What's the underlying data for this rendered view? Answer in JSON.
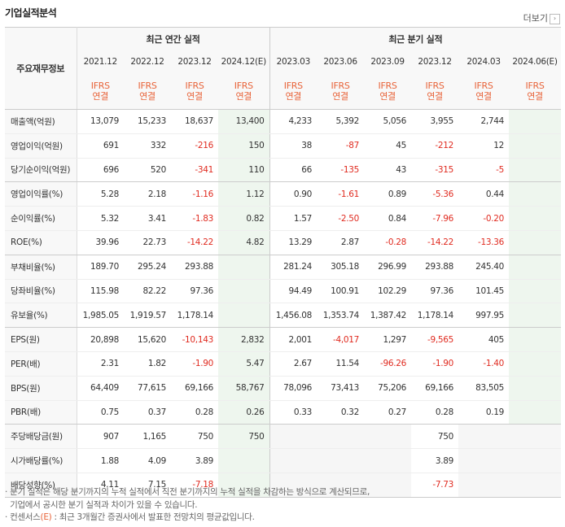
{
  "title": "기업실적분석",
  "more_label": "더보기",
  "header": {
    "row_label": "주요재무정보",
    "annual_group": "최근 연간 실적",
    "quarter_group": "최근 분기 실적",
    "periods": [
      "2021.12",
      "2022.12",
      "2023.12",
      "2024.12(E)",
      "2023.03",
      "2023.06",
      "2023.09",
      "2023.12",
      "2024.03",
      "2024.06(E)"
    ],
    "basis_top": "IFRS",
    "basis_bottom": "연결"
  },
  "rows": [
    {
      "label": "매출액(억원)",
      "values": [
        "13,079",
        "15,233",
        "18,637",
        "13,400",
        "4,233",
        "5,392",
        "5,056",
        "3,955",
        "2,744",
        ""
      ]
    },
    {
      "label": "영업이익(억원)",
      "values": [
        "691",
        "332",
        "-216",
        "150",
        "38",
        "-87",
        "45",
        "-212",
        "12",
        ""
      ]
    },
    {
      "label": "당기순이익(억원)",
      "values": [
        "696",
        "520",
        "-341",
        "110",
        "66",
        "-135",
        "43",
        "-315",
        "-5",
        ""
      ]
    },
    {
      "label": "영업이익률(%)",
      "values": [
        "5.28",
        "2.18",
        "-1.16",
        "1.12",
        "0.90",
        "-1.61",
        "0.89",
        "-5.36",
        "0.44",
        ""
      ]
    },
    {
      "label": "순이익률(%)",
      "values": [
        "5.32",
        "3.41",
        "-1.83",
        "0.82",
        "1.57",
        "-2.50",
        "0.84",
        "-7.96",
        "-0.20",
        ""
      ]
    },
    {
      "label": "ROE(%)",
      "values": [
        "39.96",
        "22.73",
        "-14.22",
        "4.82",
        "13.29",
        "2.87",
        "-0.28",
        "-14.22",
        "-13.36",
        ""
      ]
    },
    {
      "label": "부채비율(%)",
      "values": [
        "189.70",
        "295.24",
        "293.88",
        "",
        "281.24",
        "305.18",
        "296.99",
        "293.88",
        "245.40",
        ""
      ]
    },
    {
      "label": "당좌비율(%)",
      "values": [
        "115.98",
        "82.22",
        "97.36",
        "",
        "94.49",
        "100.91",
        "102.29",
        "97.36",
        "101.45",
        ""
      ]
    },
    {
      "label": "유보율(%)",
      "values": [
        "1,985.05",
        "1,919.57",
        "1,178.14",
        "",
        "1,456.08",
        "1,353.74",
        "1,387.42",
        "1,178.14",
        "997.95",
        ""
      ]
    },
    {
      "label": "EPS(원)",
      "values": [
        "20,898",
        "15,620",
        "-10,143",
        "2,832",
        "2,001",
        "-4,017",
        "1,297",
        "-9,565",
        "405",
        ""
      ]
    },
    {
      "label": "PER(배)",
      "values": [
        "2.31",
        "1.82",
        "-1.90",
        "5.47",
        "2.67",
        "11.54",
        "-96.26",
        "-1.90",
        "-1.40",
        ""
      ]
    },
    {
      "label": "BPS(원)",
      "values": [
        "64,409",
        "77,615",
        "69,166",
        "58,767",
        "78,096",
        "73,413",
        "75,206",
        "69,166",
        "83,505",
        ""
      ]
    },
    {
      "label": "PBR(배)",
      "values": [
        "0.75",
        "0.37",
        "0.28",
        "0.26",
        "0.33",
        "0.32",
        "0.27",
        "0.28",
        "0.19",
        ""
      ]
    },
    {
      "label": "주당배당금(원)",
      "values": [
        "907",
        "1,165",
        "750",
        "750",
        "",
        "",
        "",
        "750",
        "",
        ""
      ]
    },
    {
      "label": "시가배당률(%)",
      "values": [
        "1.88",
        "4.09",
        "3.89",
        "",
        "",
        "",
        "",
        "3.89",
        "",
        ""
      ]
    },
    {
      "label": "배당성향(%)",
      "values": [
        "4.11",
        "7.15",
        "-7.18",
        "",
        "",
        "",
        "",
        "-7.73",
        "",
        ""
      ]
    }
  ],
  "notes": [
    "분기 실적은 해당 분기까지의 누적 실적에서 직전 분기까지의 누적 실적을 차감하는 방식으로 계산되므로,",
    "기업에서 공시한 분기 실적과 차이가 있을 수 있습니다.",
    "컨센서스",
    "(E)",
    ": 최근 3개월간 증권사에서 발표한 전망치의 평균값입니다."
  ]
}
